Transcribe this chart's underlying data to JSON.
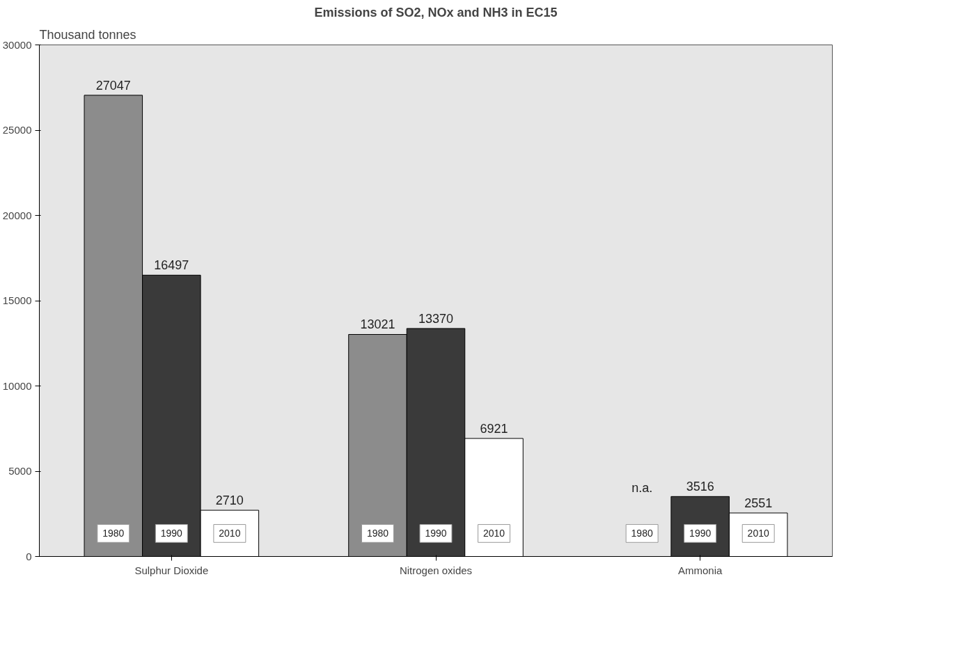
{
  "chart_data": {
    "type": "bar",
    "title": "Emissions of SO2, NOx and NH3 in EC15",
    "ylabel": "Thousand tonnes",
    "categories": [
      "Sulphur Dioxide",
      "Nitrogen oxides",
      "Ammonia"
    ],
    "series": [
      {
        "name": "1980",
        "color": "#8c8c8c",
        "values": [
          27047,
          13021,
          null
        ]
      },
      {
        "name": "1990",
        "color": "#3a3a3a",
        "values": [
          16497,
          13370,
          3516
        ]
      },
      {
        "name": "2010",
        "color": "#ffffff",
        "values": [
          2710,
          6921,
          2551
        ]
      }
    ],
    "ylim": [
      0,
      30000
    ],
    "yticks": [
      0,
      5000,
      10000,
      15000,
      20000,
      25000,
      30000
    ],
    "data_labels": true,
    "grid": false,
    "legend": false,
    "annotations": [
      "n.a."
    ]
  }
}
